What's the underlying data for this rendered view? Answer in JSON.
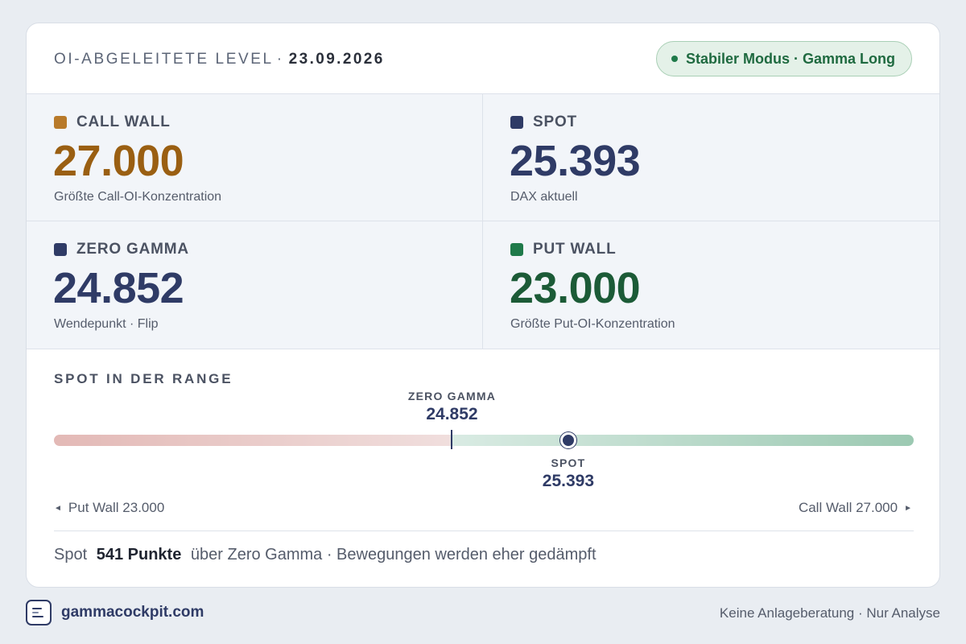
{
  "header": {
    "title": "OI-ABGELEITETE LEVEL",
    "separator": "·",
    "date": "23.09.2026",
    "badge": "Stabiler Modus · Gamma Long"
  },
  "levels": [
    {
      "label": "CALL WALL",
      "value": "27.000",
      "sub": "Größte Call-OI-Konzentration",
      "color": "#9a5f12",
      "square": "#b87a2a"
    },
    {
      "label": "SPOT",
      "value": "25.393",
      "sub": "DAX aktuell",
      "color": "#2f3b66",
      "square": "#2f3b66"
    },
    {
      "label": "ZERO GAMMA",
      "value": "24.852",
      "sub": "Wendepunkt · Flip",
      "color": "#2f3b66",
      "square": "#2f3b66"
    },
    {
      "label": "PUT WALL",
      "value": "23.000",
      "sub": "Größte Put-OI-Konzentration",
      "color": "#1c5b37",
      "square": "#1f7a4a"
    }
  ],
  "range": {
    "title": "SPOT IN DER RANGE",
    "min": 23000,
    "max": 27000,
    "zero_gamma": 24852,
    "spot": 25393,
    "zero_gamma_label": "ZERO GAMMA",
    "zero_gamma_value": "24.852",
    "spot_label": "SPOT",
    "spot_value": "25.393",
    "left_end": "Put Wall 23.000",
    "right_end": "Call Wall 27.000"
  },
  "summary": {
    "prefix": "Spot",
    "highlight": "541 Punkte",
    "suffix": "über Zero Gamma · Bewegungen werden eher gedämpft"
  },
  "footer": {
    "brand": "gammacockpit.com",
    "disclaimer": "Keine Anlageberatung · Nur Analyse"
  }
}
